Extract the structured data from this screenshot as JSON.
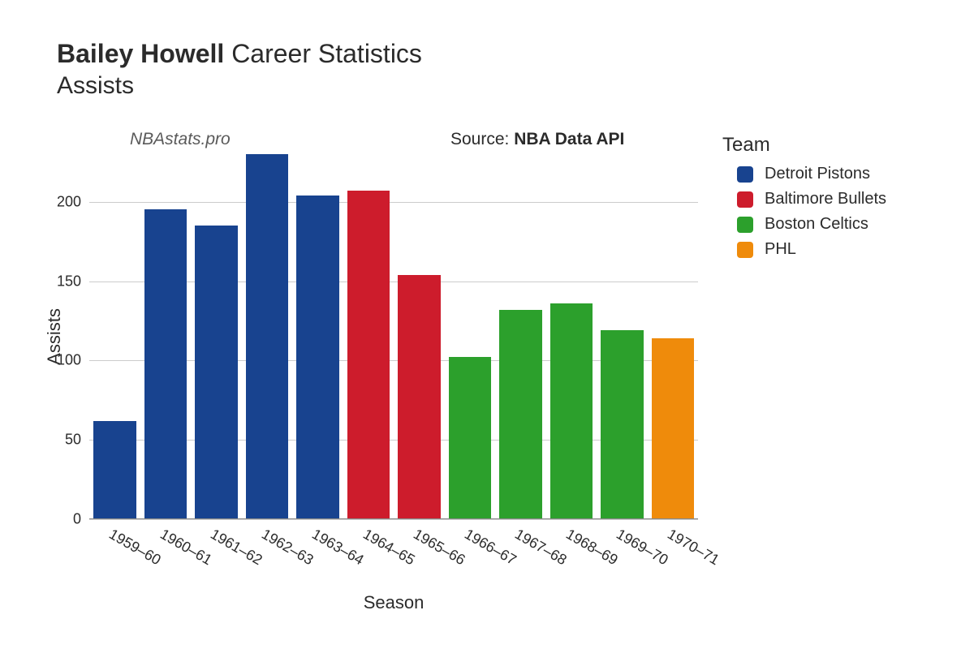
{
  "title": {
    "player_name": "Bailey Howell",
    "suffix": "Career Statistics",
    "metric": "Assists"
  },
  "watermark": "NBAstats.pro",
  "source": {
    "prefix": "Source: ",
    "name": "NBA Data API"
  },
  "axes": {
    "x_title": "Season",
    "y_title": "Assists",
    "ylim": [
      0,
      230
    ],
    "yticks": [
      0,
      50,
      100,
      150,
      200
    ]
  },
  "legend": {
    "title": "Team",
    "items": [
      {
        "label": "Detroit Pistons",
        "color": "#18438f"
      },
      {
        "label": "Baltimore Bullets",
        "color": "#cd1c2c"
      },
      {
        "label": "Boston Celtics",
        "color": "#2ca02c"
      },
      {
        "label": "PHL",
        "color": "#ef8b0b"
      }
    ]
  },
  "chart": {
    "type": "bar",
    "bar_width_ratio": 0.84,
    "background_color": "#ffffff",
    "grid_color": "#cccccc",
    "seasons": [
      {
        "label": "1959–60",
        "value": 62,
        "team": "Detroit Pistons",
        "color": "#18438f"
      },
      {
        "label": "1960–61",
        "value": 195,
        "team": "Detroit Pistons",
        "color": "#18438f"
      },
      {
        "label": "1961–62",
        "value": 185,
        "team": "Detroit Pistons",
        "color": "#18438f"
      },
      {
        "label": "1962–63",
        "value": 230,
        "team": "Detroit Pistons",
        "color": "#18438f"
      },
      {
        "label": "1963–64",
        "value": 204,
        "team": "Detroit Pistons",
        "color": "#18438f"
      },
      {
        "label": "1964–65",
        "value": 207,
        "team": "Baltimore Bullets",
        "color": "#cd1c2c"
      },
      {
        "label": "1965–66",
        "value": 154,
        "team": "Baltimore Bullets",
        "color": "#cd1c2c"
      },
      {
        "label": "1966–67",
        "value": 102,
        "team": "Boston Celtics",
        "color": "#2ca02c"
      },
      {
        "label": "1967–68",
        "value": 132,
        "team": "Boston Celtics",
        "color": "#2ca02c"
      },
      {
        "label": "1968–69",
        "value": 136,
        "team": "Boston Celtics",
        "color": "#2ca02c"
      },
      {
        "label": "1969–70",
        "value": 119,
        "team": "Boston Celtics",
        "color": "#2ca02c"
      },
      {
        "label": "1970–71",
        "value": 114,
        "team": "PHL",
        "color": "#ef8b0b"
      }
    ]
  },
  "typography": {
    "title_fontsize": 32,
    "subtitle_fontsize": 30,
    "axis_title_fontsize": 22,
    "tick_fontsize": 18,
    "legend_title_fontsize": 24,
    "legend_item_fontsize": 20
  }
}
